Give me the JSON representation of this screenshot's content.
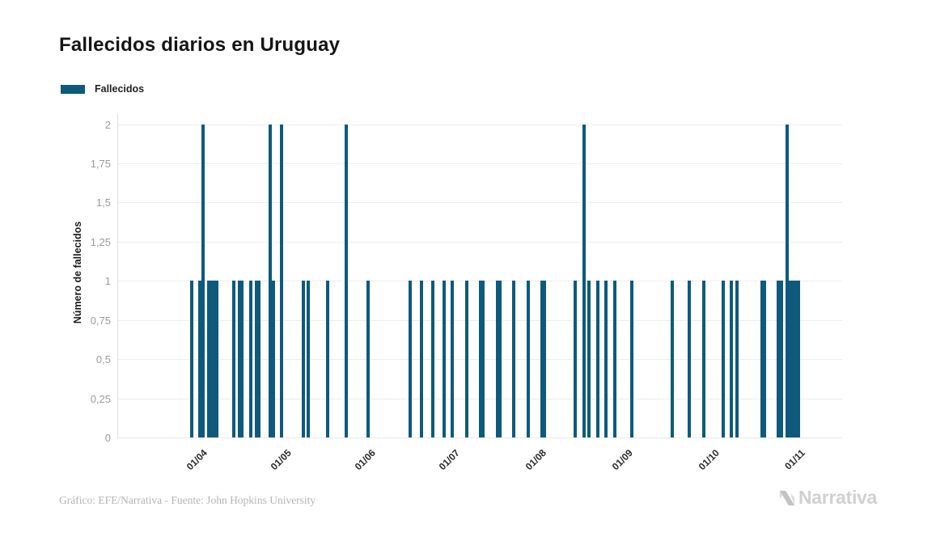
{
  "chart": {
    "title": "Fallecidos diarios en Uruguay",
    "legend_label": "Fallecidos",
    "ylabel": "Número de fallecidos",
    "bar_color": "#0d5a7c",
    "y_ticks": [
      "0",
      "0,25",
      "0,5",
      "0,75",
      "1",
      "1,25",
      "1,5",
      "1,75",
      "2"
    ],
    "x_ticks": [
      "01/04",
      "01/05",
      "01/06",
      "01/07",
      "01/08",
      "01/09",
      "01/10",
      "01/11"
    ]
  },
  "chart_data": {
    "type": "bar",
    "title": "Fallecidos diarios en Uruguay",
    "series_name": "Fallecidos",
    "xlabel": "",
    "ylabel": "Número de fallecidos",
    "ylim": [
      0,
      2
    ],
    "y_tick_values": [
      0,
      0.25,
      0.5,
      0.75,
      1,
      1.25,
      1.5,
      1.75,
      2
    ],
    "x_tick_labels": [
      "01/04",
      "01/05",
      "01/06",
      "01/07",
      "01/08",
      "01/09",
      "01/10",
      "01/11"
    ],
    "date_format": "dd/mm",
    "grid": "horizontal",
    "legend_position": "top-left",
    "bars": [
      {
        "date": "01/04",
        "value": 1
      },
      {
        "date": "04/04",
        "value": 1
      },
      {
        "date": "05/04",
        "value": 2
      },
      {
        "date": "07/04",
        "value": 1
      },
      {
        "date": "08/04",
        "value": 1
      },
      {
        "date": "09/04",
        "value": 1
      },
      {
        "date": "10/04",
        "value": 1
      },
      {
        "date": "16/04",
        "value": 1
      },
      {
        "date": "18/04",
        "value": 1
      },
      {
        "date": "19/04",
        "value": 1
      },
      {
        "date": "22/04",
        "value": 1
      },
      {
        "date": "24/04",
        "value": 1
      },
      {
        "date": "25/04",
        "value": 1
      },
      {
        "date": "29/04",
        "value": 2
      },
      {
        "date": "30/04",
        "value": 1
      },
      {
        "date": "03/05",
        "value": 2
      },
      {
        "date": "11/05",
        "value": 1
      },
      {
        "date": "13/05",
        "value": 1
      },
      {
        "date": "20/05",
        "value": 1
      },
      {
        "date": "27/05",
        "value": 2
      },
      {
        "date": "04/06",
        "value": 1
      },
      {
        "date": "19/06",
        "value": 1
      },
      {
        "date": "23/06",
        "value": 1
      },
      {
        "date": "27/06",
        "value": 1
      },
      {
        "date": "01/07",
        "value": 1
      },
      {
        "date": "04/07",
        "value": 1
      },
      {
        "date": "09/07",
        "value": 1
      },
      {
        "date": "14/07",
        "value": 1
      },
      {
        "date": "15/07",
        "value": 1
      },
      {
        "date": "20/07",
        "value": 1
      },
      {
        "date": "21/07",
        "value": 1
      },
      {
        "date": "26/07",
        "value": 1
      },
      {
        "date": "31/07",
        "value": 1
      },
      {
        "date": "05/08",
        "value": 1
      },
      {
        "date": "06/08",
        "value": 1
      },
      {
        "date": "17/08",
        "value": 1
      },
      {
        "date": "20/08",
        "value": 2
      },
      {
        "date": "22/08",
        "value": 1
      },
      {
        "date": "25/08",
        "value": 1
      },
      {
        "date": "28/08",
        "value": 1
      },
      {
        "date": "31/08",
        "value": 1
      },
      {
        "date": "06/09",
        "value": 1
      },
      {
        "date": "20/09",
        "value": 1
      },
      {
        "date": "26/09",
        "value": 1
      },
      {
        "date": "01/10",
        "value": 1
      },
      {
        "date": "08/10",
        "value": 1
      },
      {
        "date": "11/10",
        "value": 1
      },
      {
        "date": "13/10",
        "value": 1
      },
      {
        "date": "22/10",
        "value": 1
      },
      {
        "date": "23/10",
        "value": 1
      },
      {
        "date": "28/10",
        "value": 1
      },
      {
        "date": "29/10",
        "value": 1
      },
      {
        "date": "31/10",
        "value": 2
      },
      {
        "date": "01/11",
        "value": 1
      },
      {
        "date": "02/11",
        "value": 1
      },
      {
        "date": "03/11",
        "value": 1
      },
      {
        "date": "04/11",
        "value": 1
      }
    ]
  },
  "footer": {
    "credit": "Gráfico: EFE/Narrativa - Fuente: John Hopkins University",
    "logo_text": "Narrativa"
  }
}
